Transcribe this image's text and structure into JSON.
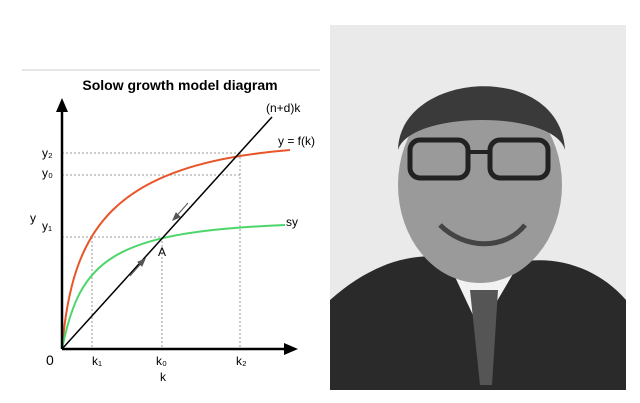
{
  "diagram": {
    "title": "Solow growth model diagram",
    "curve_labels": {
      "line": "(n+d)k",
      "output": "y = f(k)",
      "savings": "sy"
    },
    "y_axis": {
      "label": "y",
      "ticks": [
        "y₂",
        "y₀",
        "y₁"
      ]
    },
    "x_axis": {
      "label": "k",
      "origin": "0",
      "ticks": [
        "k₁",
        "k₀",
        "k₂"
      ]
    },
    "point": "A"
  }
}
